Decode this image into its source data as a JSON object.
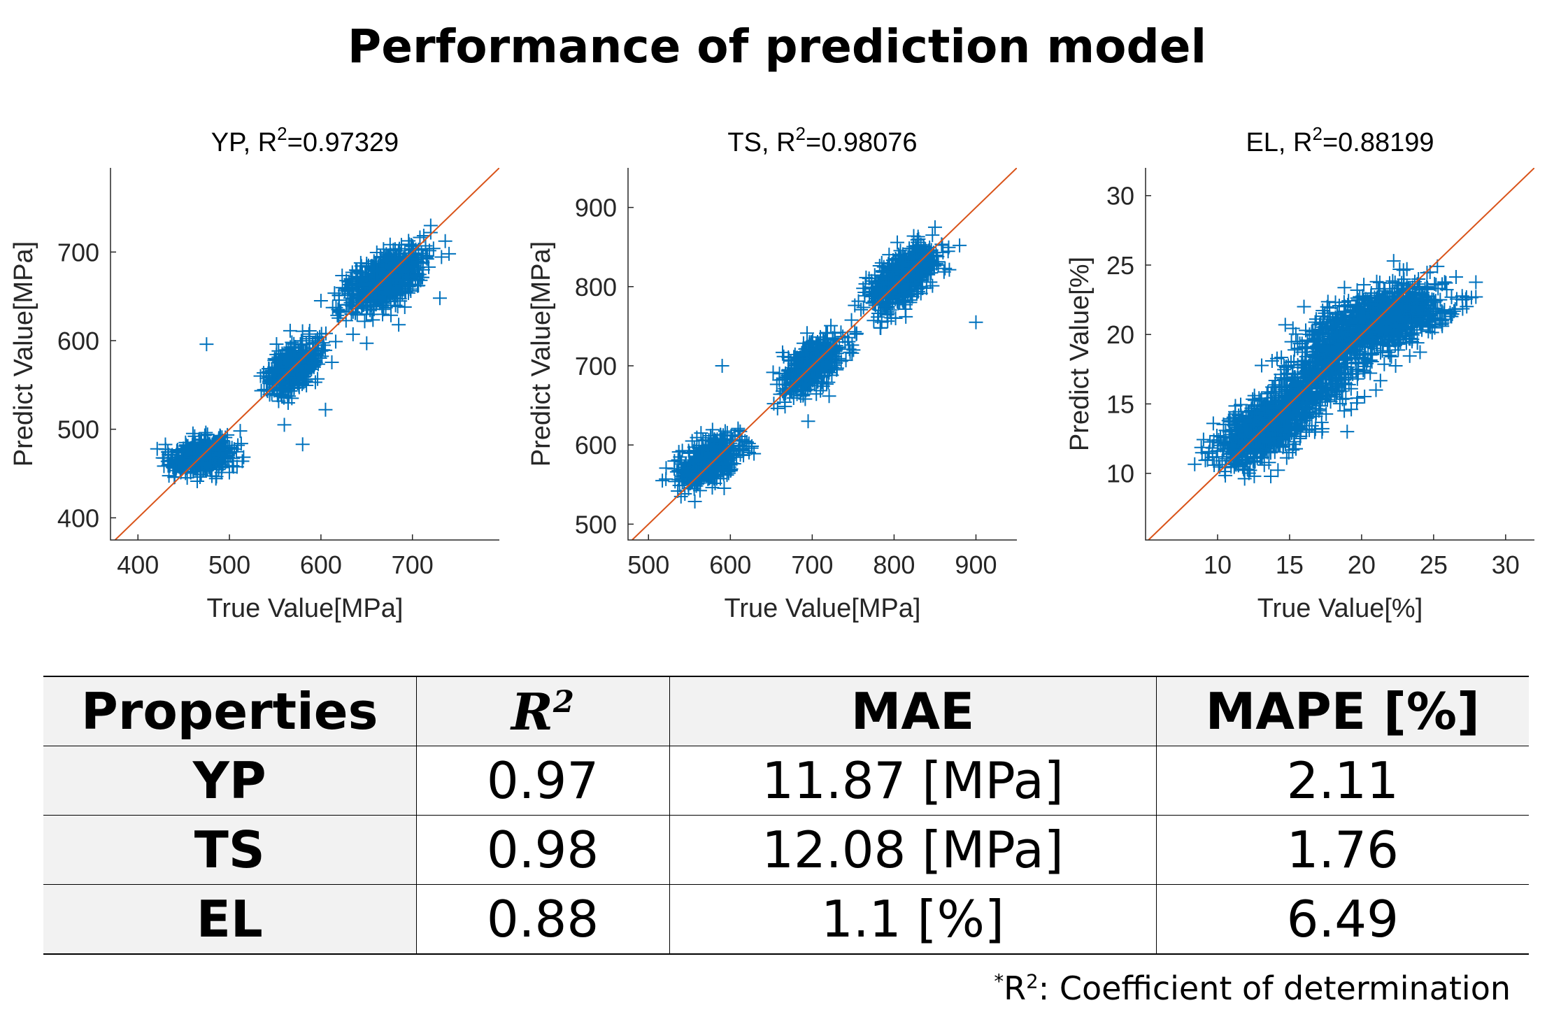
{
  "title": "Performance of prediction model",
  "colors": {
    "points": "#0072BD",
    "diagonal": "#D95319"
  },
  "chart_data": [
    {
      "type": "scatter",
      "title_prefix": "YP, R",
      "title_value": "=0.97329",
      "xlabel": "True Value[MPa]",
      "ylabel": "Predict Value[MPa]",
      "xlim": [
        370,
        795
      ],
      "ylim": [
        375,
        795
      ],
      "xticks": [
        400,
        500,
        600,
        700
      ],
      "yticks": [
        400,
        500,
        600,
        700
      ],
      "marker": "+",
      "diagonal": true,
      "clusters": [
        {
          "cx": 470,
          "cy": 470,
          "sx": 16,
          "sy": 10,
          "rho": 0.3,
          "n": 500
        },
        {
          "cx": 570,
          "cy": 570,
          "sx": 14,
          "sy": 14,
          "rho": 0.55,
          "n": 450
        },
        {
          "cx": 670,
          "cy": 668,
          "sx": 20,
          "sy": 17,
          "rho": 0.6,
          "n": 800
        }
      ],
      "outliers": [
        [
          475,
          596
        ],
        [
          580,
          483
        ],
        [
          605,
          522
        ],
        [
          560,
          505
        ],
        [
          650,
          597
        ],
        [
          740,
          698
        ],
        [
          730,
          648
        ],
        [
          685,
          618
        ],
        [
          600,
          645
        ],
        [
          720,
          722
        ]
      ]
    },
    {
      "type": "scatter",
      "title_prefix": "TS, R",
      "title_value": "=0.98076",
      "xlabel": "True Value[MPa]",
      "ylabel": "Predict Value[MPa]",
      "xlim": [
        475,
        950
      ],
      "ylim": [
        480,
        950
      ],
      "xticks": [
        500,
        600,
        700,
        800,
        900
      ],
      "yticks": [
        500,
        600,
        700,
        800,
        900
      ],
      "marker": "+",
      "diagonal": true,
      "clusters": [
        {
          "cx": 575,
          "cy": 580,
          "sx": 18,
          "sy": 15,
          "rho": 0.55,
          "n": 550
        },
        {
          "cx": 700,
          "cy": 700,
          "sx": 18,
          "sy": 18,
          "rho": 0.6,
          "n": 500
        },
        {
          "cx": 812,
          "cy": 812,
          "sx": 20,
          "sy": 20,
          "rho": 0.6,
          "n": 700
        }
      ],
      "outliers": [
        [
          590,
          700
        ],
        [
          900,
          755
        ],
        [
          695,
          630
        ],
        [
          850,
          875
        ],
        [
          880,
          852
        ],
        [
          660,
          690
        ],
        [
          740,
          730
        ],
        [
          790,
          775
        ]
      ]
    },
    {
      "type": "scatter",
      "title_prefix": "EL, R",
      "title_value": "=0.88199",
      "xlabel": "True Value[%]",
      "ylabel": "Predict Value[%]",
      "xlim": [
        5,
        32
      ],
      "ylim": [
        5.2,
        32
      ],
      "xticks": [
        10,
        15,
        20,
        25,
        30
      ],
      "yticks": [
        10,
        15,
        20,
        25,
        30
      ],
      "marker": "+",
      "diagonal": true,
      "clusters": [
        {
          "cx": 13,
          "cy": 13,
          "sx": 1.5,
          "sy": 1.2,
          "rho": 0.5,
          "n": 700
        },
        {
          "cx": 17,
          "cy": 17.2,
          "sx": 1.8,
          "sy": 2.1,
          "rho": 0.6,
          "n": 600
        },
        {
          "cx": 21.5,
          "cy": 21,
          "sx": 2.2,
          "sy": 1.3,
          "rho": 0.5,
          "n": 900
        }
      ],
      "outliers": [
        [
          14.7,
          20.7
        ],
        [
          16,
          22
        ],
        [
          19,
          13
        ],
        [
          25,
          22.5
        ],
        [
          27,
          22.5
        ],
        [
          21,
          16
        ],
        [
          23.5,
          19.5
        ],
        [
          12,
          11
        ]
      ]
    }
  ],
  "table": {
    "headers": [
      "Properties",
      "R",
      "MAE",
      "MAPE [%]"
    ],
    "rows": [
      [
        "YP",
        "0.97",
        "11.87 [MPa]",
        "2.11"
      ],
      [
        "TS",
        "0.98",
        "12.08 [MPa]",
        "1.76"
      ],
      [
        "EL",
        "0.88",
        "1.1 [%]",
        "6.49"
      ]
    ]
  },
  "footnote": {
    "star": "*",
    "r": "R",
    "sup": "2",
    "text": ": Coefficient of determination"
  },
  "sup2": "2"
}
